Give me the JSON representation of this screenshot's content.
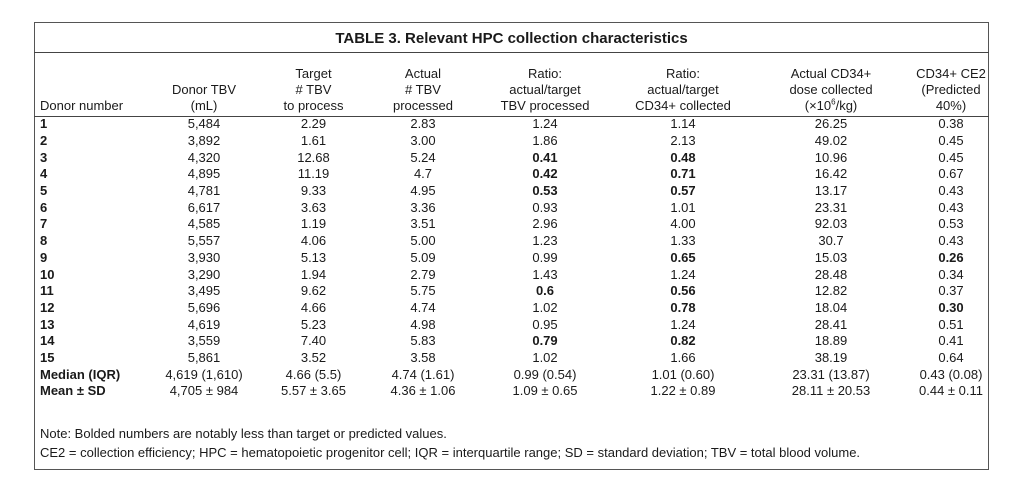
{
  "title": "TABLE 3. Relevant HPC collection characteristics",
  "headers": [
    [
      "Donor number"
    ],
    [
      "Donor TBV",
      "(mL)"
    ],
    [
      "Target",
      "# TBV",
      "to process"
    ],
    [
      "Actual",
      "# TBV",
      "processed"
    ],
    [
      "Ratio:",
      "actual/target",
      "TBV processed"
    ],
    [
      "Ratio:",
      "actual/target",
      "CD34+ collected"
    ],
    [
      "Actual CD34+",
      "dose collected",
      "(×10",
      "6",
      "/kg)"
    ],
    [
      "CD34+ CE2",
      "(Predicted 40%)"
    ]
  ],
  "rows": [
    [
      "1",
      "5,484",
      "2.29",
      "2.83",
      "1.24",
      "1.14",
      "26.25",
      "0.38"
    ],
    [
      "2",
      "3,892",
      "1.61",
      "3.00",
      "1.86",
      "2.13",
      "49.02",
      "0.45"
    ],
    [
      "3",
      "4,320",
      "12.68",
      "5.24",
      "0.41",
      "0.48",
      "10.96",
      "0.45"
    ],
    [
      "4",
      "4,895",
      "11.19",
      "4.7",
      "0.42",
      "0.71",
      "16.42",
      "0.67"
    ],
    [
      "5",
      "4,781",
      "9.33",
      "4.95",
      "0.53",
      "0.57",
      "13.17",
      "0.43"
    ],
    [
      "6",
      "6,617",
      "3.63",
      "3.36",
      "0.93",
      "1.01",
      "23.31",
      "0.43"
    ],
    [
      "7",
      "4,585",
      "1.19",
      "3.51",
      "2.96",
      "4.00",
      "92.03",
      "0.53"
    ],
    [
      "8",
      "5,557",
      "4.06",
      "5.00",
      "1.23",
      "1.33",
      "30.7",
      "0.43"
    ],
    [
      "9",
      "3,930",
      "5.13",
      "5.09",
      "0.99",
      "0.65",
      "15.03",
      "0.26"
    ],
    [
      "10",
      "3,290",
      "1.94",
      "2.79",
      "1.43",
      "1.24",
      "28.48",
      "0.34"
    ],
    [
      "11",
      "3,495",
      "9.62",
      "5.75",
      "0.6",
      "0.56",
      "12.82",
      "0.37"
    ],
    [
      "12",
      "5,696",
      "4.66",
      "4.74",
      "1.02",
      "0.78",
      "18.04",
      "0.30"
    ],
    [
      "13",
      "4,619",
      "5.23",
      "4.98",
      "0.95",
      "1.24",
      "28.41",
      "0.51"
    ],
    [
      "14",
      "3,559",
      "7.40",
      "5.83",
      "0.79",
      "0.82",
      "18.89",
      "0.41"
    ],
    [
      "15",
      "5,861",
      "3.52",
      "3.58",
      "1.02",
      "1.66",
      "38.19",
      "0.64"
    ],
    [
      "Median (IQR)",
      "4,619 (1,610)",
      "4.66 (5.5)",
      "4.74 (1.61)",
      "0.99 (0.54)",
      "1.01 (0.60)",
      "23.31 (13.87)",
      "0.43 (0.08)"
    ],
    [
      "Mean ± SD",
      "4,705 ± 984",
      "5.57 ± 3.65",
      "4.36 ± 1.06",
      "1.09 ± 0.65",
      "1.22 ± 0.89",
      "28.11 ± 20.53",
      "0.44 ± 0.11"
    ]
  ],
  "bold_cells": [
    [
      2,
      4
    ],
    [
      2,
      5
    ],
    [
      3,
      4
    ],
    [
      3,
      5
    ],
    [
      4,
      4
    ],
    [
      4,
      5
    ],
    [
      8,
      5
    ],
    [
      8,
      7
    ],
    [
      10,
      4
    ],
    [
      10,
      5
    ],
    [
      11,
      5
    ],
    [
      11,
      7
    ],
    [
      13,
      4
    ],
    [
      13,
      5
    ]
  ],
  "notes": [
    "Note: Bolded numbers are notably less than target or predicted values.",
    "CE2 = collection efficiency; HPC = hematopoietic progenitor cell; IQR = interquartile range; SD = standard deviation; TBV = total blood volume."
  ]
}
